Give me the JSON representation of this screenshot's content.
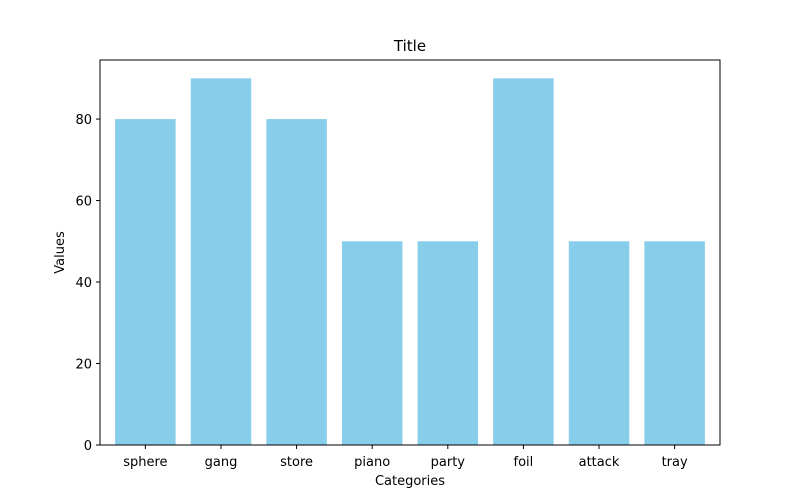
{
  "chart_data": {
    "type": "bar",
    "title": "Title",
    "xlabel": "Categories",
    "ylabel": "Values",
    "categories": [
      "sphere",
      "gang",
      "store",
      "piano",
      "party",
      "foil",
      "attack",
      "tray"
    ],
    "values": [
      80,
      90,
      80,
      50,
      50,
      90,
      50,
      50
    ],
    "ylim": [
      0,
      94.5
    ],
    "yticks": [
      0,
      20,
      40,
      60,
      80
    ],
    "grid": false,
    "bar_color": "#87CEEB"
  }
}
